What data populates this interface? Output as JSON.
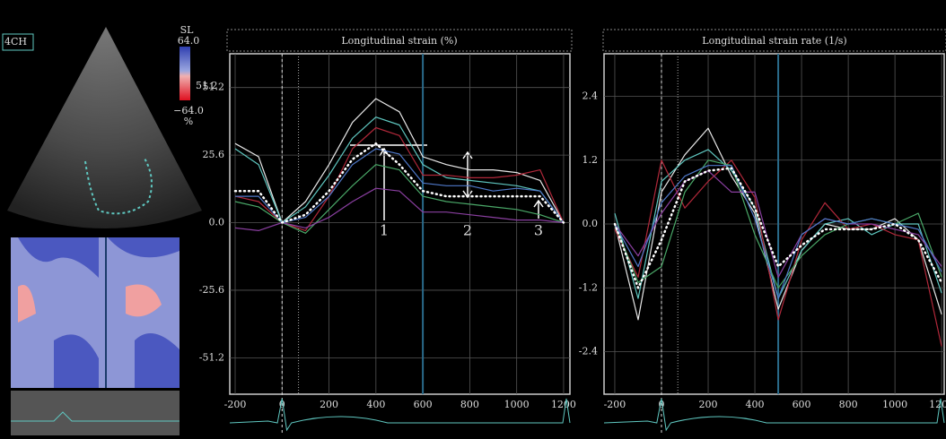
{
  "ultrasound": {
    "view": "4CH",
    "scale_title": "SL",
    "scale_max": "64.0",
    "scale_mid": "51.2",
    "scale_min": "−64.0",
    "unit": "%"
  },
  "chart_data": [
    {
      "type": "line",
      "title": "Longitudinal strain (%)",
      "x": [
        -200,
        -100,
        0,
        100,
        200,
        300,
        400,
        500,
        600,
        700,
        800,
        900,
        1000,
        1100,
        1200
      ],
      "xlim": [
        -223,
        1227
      ],
      "xticks": [
        -200,
        0,
        200,
        400,
        600,
        800,
        1000,
        1200
      ],
      "ylim": [
        -65,
        64
      ],
      "yticks": [
        -51.2,
        -25.6,
        {
          "value": 0,
          "label": "0.0"
        },
        25.6,
        51.2
      ],
      "grid": true,
      "annotations": [
        "1",
        "2",
        "3"
      ],
      "series": [
        {
          "color": "#e8e8e8",
          "values": [
            30,
            25,
            0,
            8,
            22,
            38,
            47,
            42,
            25,
            22,
            20,
            20,
            19,
            16,
            0
          ]
        },
        {
          "color": "#5fc7c0",
          "values": [
            28,
            22,
            0,
            6,
            18,
            32,
            40,
            37,
            22,
            17,
            16,
            15,
            14,
            12,
            0
          ]
        },
        {
          "color": "#b0283a",
          "values": [
            10,
            8,
            0,
            -3,
            10,
            28,
            36,
            33,
            18,
            18,
            17,
            17,
            18,
            20,
            0
          ]
        },
        {
          "color": "#4aa868",
          "values": [
            8,
            6,
            0,
            -4,
            5,
            14,
            22,
            20,
            10,
            8,
            7,
            6,
            5,
            3,
            0
          ]
        },
        {
          "color": "#8a3fa0",
          "values": [
            -2,
            -3,
            0,
            -2,
            2,
            8,
            13,
            12,
            4,
            4,
            3,
            2,
            1,
            1,
            0
          ]
        },
        {
          "color": "#4f78c8",
          "values": [
            10,
            10,
            0,
            2,
            10,
            22,
            28,
            26,
            15,
            14,
            14,
            12,
            13,
            12,
            0
          ]
        },
        {
          "color": "#ffffff",
          "style": "dotted",
          "values": [
            12,
            12,
            0,
            3,
            12,
            24,
            30,
            22,
            12,
            10,
            10,
            10,
            10,
            10,
            0
          ]
        }
      ]
    },
    {
      "type": "line",
      "title": "Longitudinal strain rate (1/s)",
      "x": [
        -200,
        -100,
        0,
        100,
        200,
        300,
        400,
        500,
        600,
        700,
        800,
        900,
        1000,
        1100,
        1200
      ],
      "xlim": [
        -246,
        1211
      ],
      "xticks": [
        -200,
        0,
        200,
        400,
        600,
        800,
        1000,
        1200
      ],
      "ylim": [
        -3.2,
        3.2
      ],
      "yticks": [
        -2.4,
        -1.2,
        {
          "value": 0,
          "label": "0.0"
        },
        1.2,
        2.4
      ],
      "grid": true,
      "series": [
        {
          "color": "#e8e8e8",
          "values": [
            0,
            -1.8,
            0.6,
            1.3,
            1.8,
            0.9,
            0.2,
            -1.6,
            -0.5,
            0,
            -0.1,
            -0.1,
            0.1,
            -0.3,
            -1.7
          ]
        },
        {
          "color": "#5fc7c0",
          "values": [
            0.2,
            -1.4,
            0.8,
            1.2,
            1.4,
            1.0,
            0.3,
            -1.4,
            -0.5,
            0,
            0.1,
            -0.2,
            0,
            0,
            -1.3
          ]
        },
        {
          "color": "#b0283a",
          "values": [
            -0.1,
            -1.0,
            1.2,
            0.3,
            0.8,
            1.2,
            0.5,
            -1.8,
            -0.3,
            0.4,
            -0.1,
            0,
            -0.2,
            -0.3,
            -2.3
          ]
        },
        {
          "color": "#4aa868",
          "values": [
            0,
            -1.1,
            -0.8,
            0.6,
            1.2,
            1.1,
            -0.2,
            -1.2,
            -0.6,
            -0.2,
            0,
            0.1,
            0,
            0.2,
            -1.0
          ]
        },
        {
          "color": "#8a3fa0",
          "values": [
            0,
            -0.6,
            0.2,
            0.8,
            1.0,
            0.6,
            0.6,
            -1.0,
            -0.2,
            0.1,
            0,
            0,
            -0.1,
            -0.2,
            -0.8
          ]
        },
        {
          "color": "#4f78c8",
          "values": [
            0,
            -0.8,
            0.4,
            0.9,
            1.1,
            1.1,
            0.1,
            -1.4,
            -0.2,
            0.1,
            0,
            0.1,
            0,
            -0.1,
            -0.9
          ]
        },
        {
          "color": "#ffffff",
          "style": "dotted",
          "values": [
            0,
            -1.2,
            -0.3,
            0.8,
            1.0,
            1.05,
            0.3,
            -0.8,
            -0.4,
            -0.1,
            -0.1,
            -0.1,
            0,
            -0.3,
            -1.1
          ]
        }
      ]
    }
  ]
}
